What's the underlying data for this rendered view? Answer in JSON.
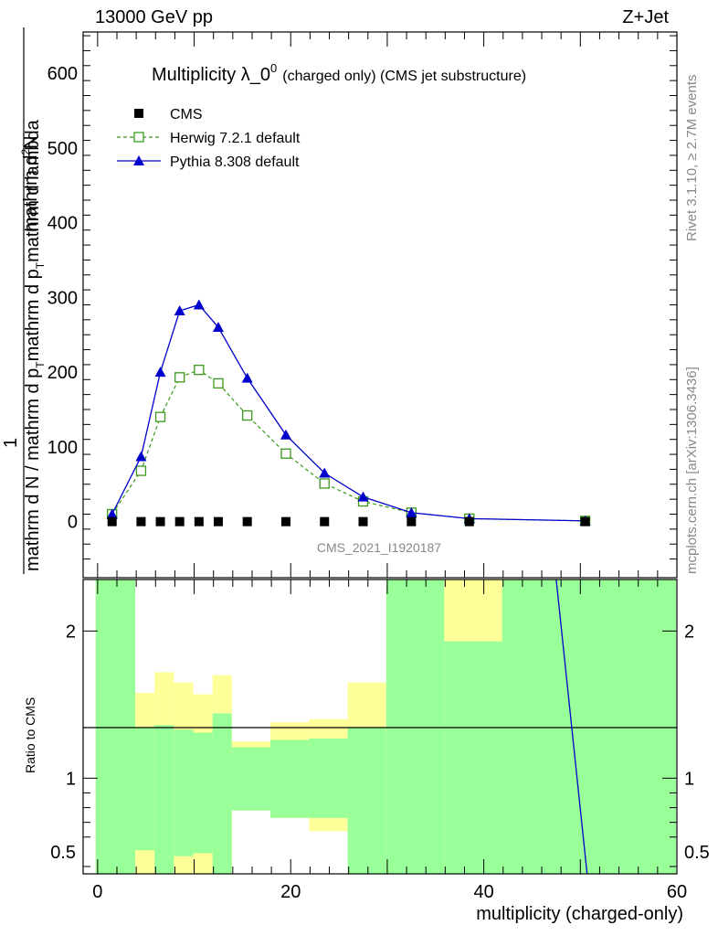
{
  "header": {
    "left": "13000 GeV pp",
    "right": "Z+Jet"
  },
  "side": {
    "rivet": "Rivet 3.1.10, ≥ 2.7M events",
    "mcplots": "mcplots.cern.ch [arXiv:1306.3436]"
  },
  "watermark": "CMS_2021_I1920187",
  "colors": {
    "cms": "#000000",
    "herwig": "#3a9a1a",
    "pythia": "#0000cc",
    "band_green": "#99ff99",
    "band_yellow": "#ffff99"
  },
  "chart_data": [
    {
      "type": "line",
      "title": "Multiplicity λ_0",
      "title_sup": "0",
      "title_suffix": "(charged only) (CMS jet substructure)",
      "ylabel_frac_top": "1",
      "ylabel_num": "mathrm d",
      "ylabel_num_sup": "2",
      "ylabel_num_end": "N",
      "ylabel_den": "mathrm d p",
      "ylabel_den_sub": "T",
      "ylabel_den_end": "mathrm d lambda",
      "ylabel_prefix": "mathrm d N / mathrm d p",
      "ylabel_prefix_sub": "T",
      "ylim": [
        -75,
        655
      ],
      "yticks": [
        0,
        100,
        200,
        300,
        400,
        500,
        600
      ],
      "ytick_labels": [
        "0",
        "100",
        "200",
        "300",
        "400",
        "500",
        "600"
      ],
      "xlim": [
        -1.5,
        60
      ],
      "legend": [
        "CMS",
        "Herwig 7.2.1 default",
        "Pythia 8.308 default"
      ],
      "series": [
        {
          "name": "CMS",
          "x": [
            1.5,
            4.5,
            6.5,
            8.5,
            10.5,
            12.5,
            15.5,
            19.5,
            23.5,
            27.5,
            32.5,
            38.5,
            50.5
          ],
          "y": [
            0,
            0,
            0,
            0,
            0,
            0,
            0,
            0,
            0,
            0,
            0,
            0,
            0
          ]
        },
        {
          "name": "Herwig 7.2.1 default",
          "x": [
            1.5,
            4.5,
            6.5,
            8.5,
            10.5,
            12.5,
            15.5,
            19.5,
            23.5,
            27.5,
            32.5,
            38.5,
            50.5
          ],
          "y": [
            10,
            68,
            140,
            193,
            203,
            185,
            142,
            91,
            51,
            27,
            12,
            4,
            1
          ]
        },
        {
          "name": "Pythia 8.308 default",
          "x": [
            1.5,
            4.5,
            6.5,
            8.5,
            10.5,
            12.5,
            15.5,
            19.5,
            23.5,
            27.5,
            32.5,
            38.5,
            50.5
          ],
          "y": [
            10,
            87,
            200,
            282,
            290,
            260,
            192,
            116,
            65,
            33,
            12,
            4,
            1
          ]
        }
      ]
    },
    {
      "type": "area",
      "ylabel": "Ratio to CMS",
      "xlabel": "multiplicity (charged-only)",
      "xlim": [
        -1.5,
        60
      ],
      "ylim": [
        0.35,
        2.35
      ],
      "xticks": [
        0,
        20,
        40,
        60
      ],
      "xtick_labels": [
        "0",
        "20",
        "40",
        "60"
      ],
      "yticks": [
        0.5,
        1,
        2
      ],
      "ytick_labels": [
        "0.5",
        "1",
        "2"
      ],
      "bins": [
        {
          "x0": -0.2,
          "x1": 3.9,
          "green": [
            0.35,
            2.35
          ],
          "yellow": [
            0.35,
            2.35
          ]
        },
        {
          "x0": 3.9,
          "x1": 5.9,
          "green": [
            0.51,
            1.34
          ],
          "yellow": [
            0.35,
            1.58
          ]
        },
        {
          "x0": 5.9,
          "x1": 7.9,
          "green": [
            0.35,
            1.36
          ],
          "yellow": [
            0.35,
            1.72
          ]
        },
        {
          "x0": 7.9,
          "x1": 9.9,
          "green": [
            0.47,
            1.33
          ],
          "yellow": [
            0.35,
            1.65
          ]
        },
        {
          "x0": 9.9,
          "x1": 11.9,
          "green": [
            0.49,
            1.31
          ],
          "yellow": [
            0.35,
            1.57
          ]
        },
        {
          "x0": 11.9,
          "x1": 13.9,
          "green": [
            0.35,
            1.44
          ],
          "yellow": [
            0.35,
            1.7
          ]
        },
        {
          "x0": 13.9,
          "x1": 17.9,
          "green": [
            0.78,
            1.21
          ],
          "yellow": [
            0.78,
            1.25
          ]
        },
        {
          "x0": 17.9,
          "x1": 21.9,
          "green": [
            0.73,
            1.26
          ],
          "yellow": [
            0.73,
            1.38
          ]
        },
        {
          "x0": 21.9,
          "x1": 25.9,
          "green": [
            0.73,
            1.27
          ],
          "yellow": [
            0.64,
            1.4
          ]
        },
        {
          "x0": 25.9,
          "x1": 29.9,
          "green": [
            0.35,
            1.34
          ],
          "yellow": [
            0.35,
            1.65
          ]
        },
        {
          "x0": 29.9,
          "x1": 35.9,
          "green": [
            0.35,
            2.35
          ],
          "yellow": [
            0.35,
            2.35
          ]
        },
        {
          "x0": 35.9,
          "x1": 41.9,
          "green": [
            0.35,
            1.93
          ],
          "yellow": [
            0.35,
            2.35
          ]
        },
        {
          "x0": 41.9,
          "x1": 59.9,
          "green": [
            0.35,
            2.35
          ],
          "yellow": [
            0.35,
            2.35
          ]
        }
      ],
      "ratio_line": {
        "x": [
          47.5,
          50.7
        ],
        "y": [
          2.35,
          0.35
        ]
      }
    }
  ]
}
